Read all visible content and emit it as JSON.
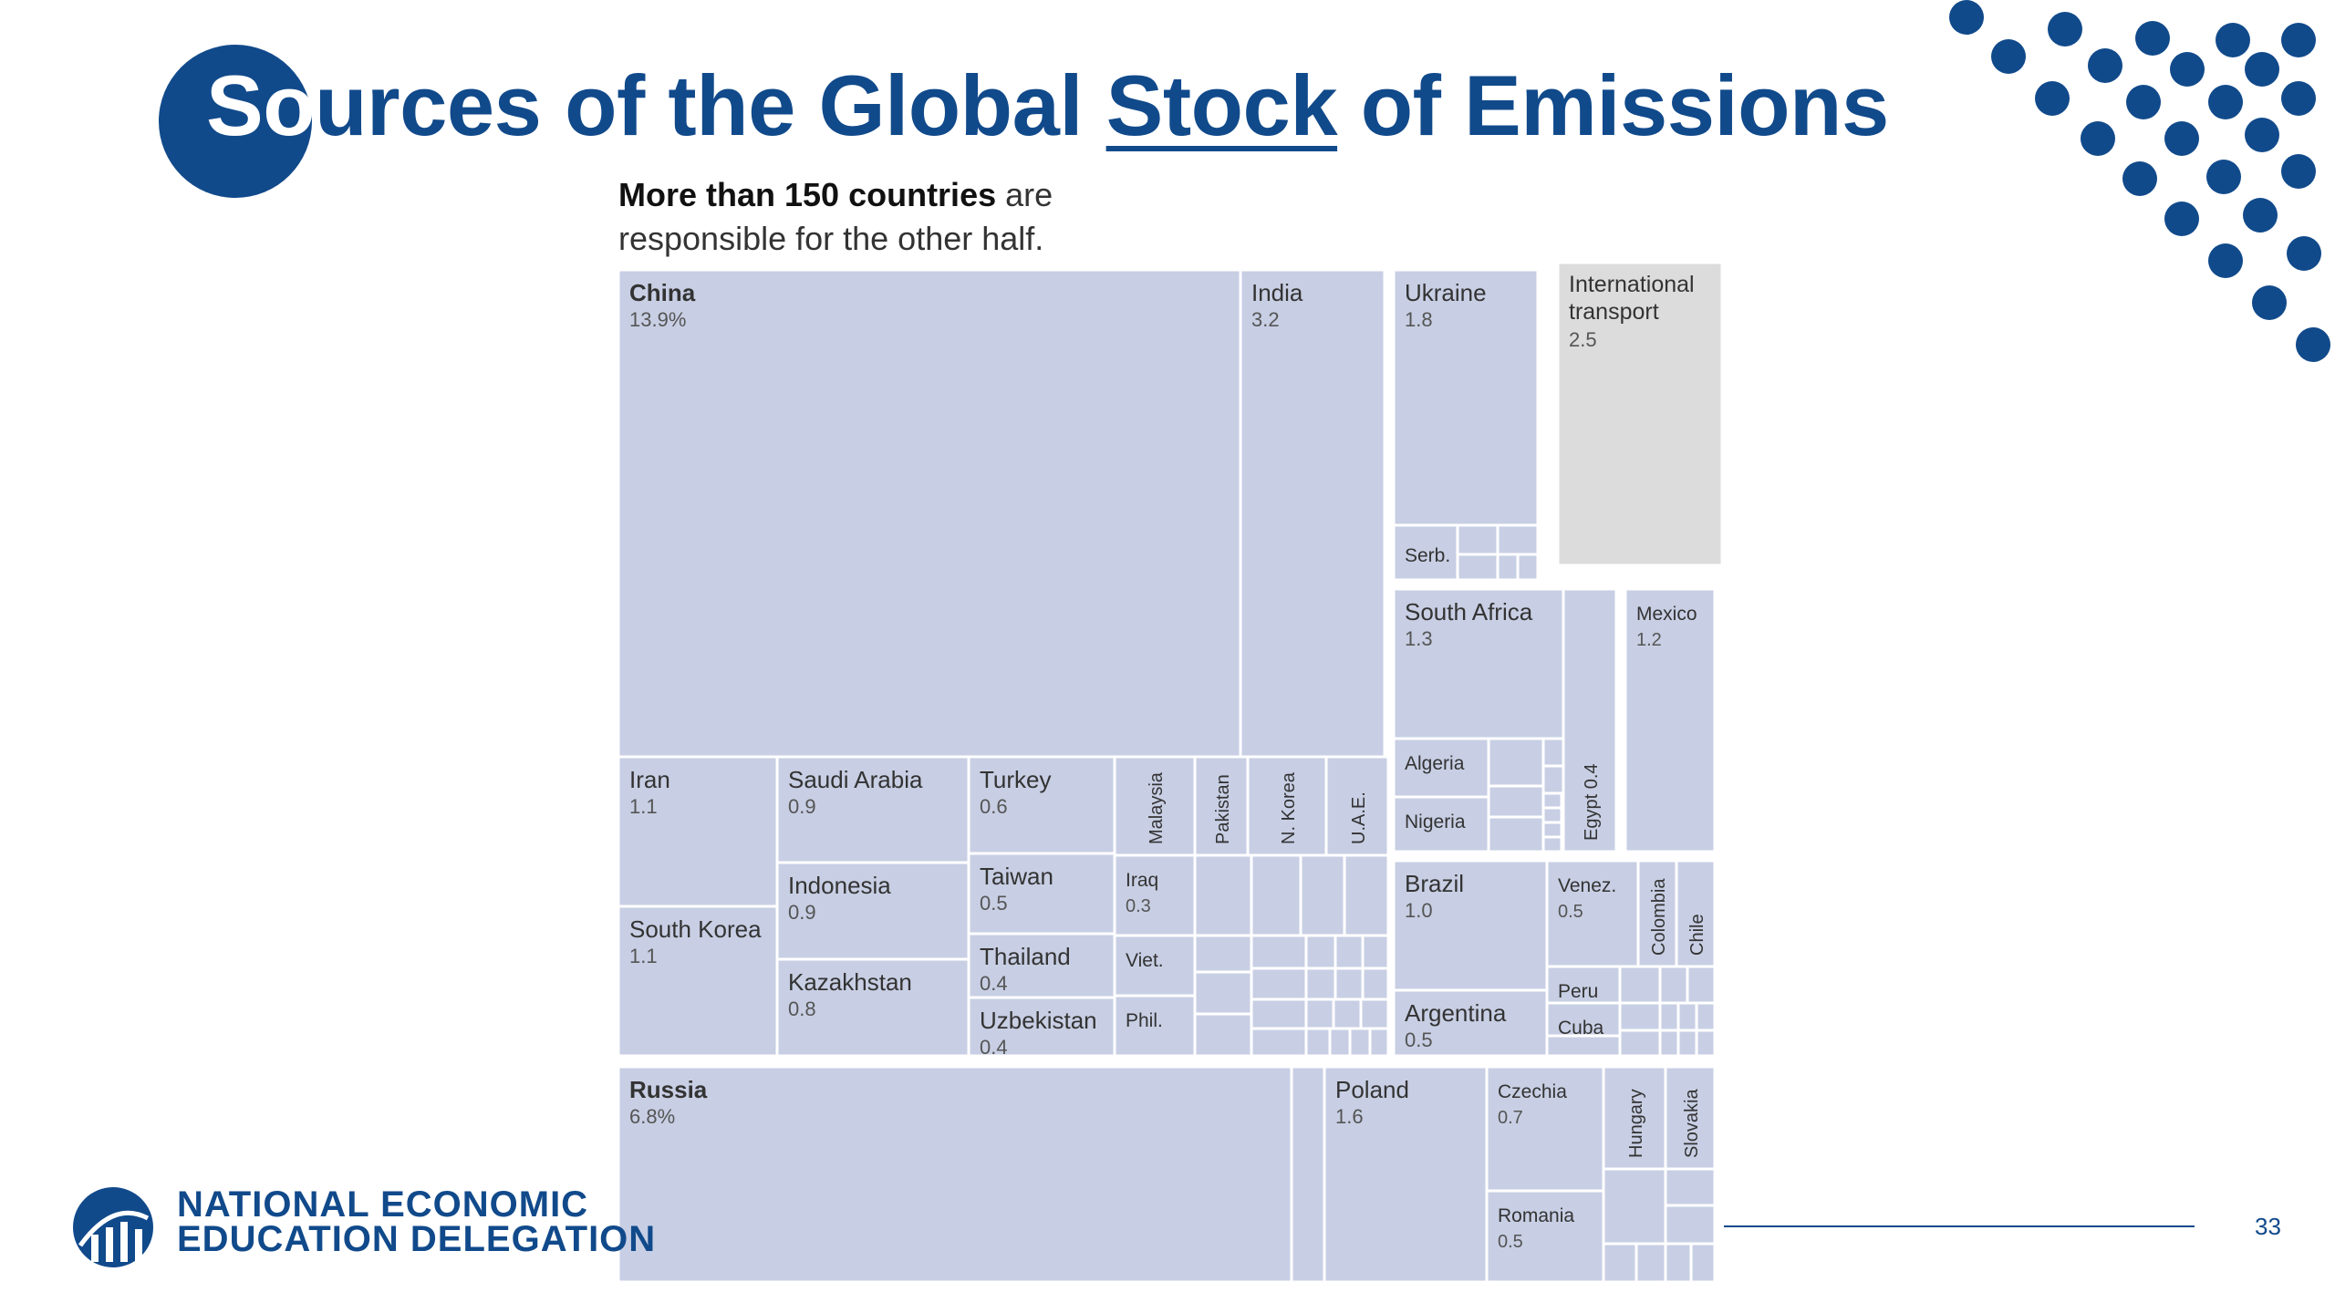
{
  "slide": {
    "title": {
      "first": "So",
      "rest_a": "urces of the Global ",
      "stock": "Stock",
      "rest_b": " of Emissions"
    },
    "subtitle": {
      "bold": "More than 150 countries",
      "line1_rest": " are",
      "line2": "responsible for the other half."
    },
    "org": {
      "line1": "NATIONAL ECONOMIC",
      "line2": "EDUCATION DELEGATION"
    },
    "page_number": "33",
    "colors": {
      "brand": "#114A8B",
      "cell": "#C8CFE4",
      "transport": "#DCDCDC",
      "border": "#FFFFFF"
    }
  },
  "chart_data": {
    "type": "treemap",
    "unit": "% of global emissions",
    "cells": [
      {
        "name": "China",
        "value": "13.9%",
        "bold": true
      },
      {
        "name": "India",
        "value": "3.2"
      },
      {
        "name": "Ukraine",
        "value": "1.8"
      },
      {
        "name": "Serb.",
        "value": ""
      },
      {
        "name": "International transport",
        "value": "2.5",
        "name_lines": [
          "International",
          "transport"
        ]
      },
      {
        "name": "Iran",
        "value": "1.1"
      },
      {
        "name": "Saudi Arabia",
        "value": "0.9"
      },
      {
        "name": "Turkey",
        "value": "0.6"
      },
      {
        "name": "Malaysia",
        "value": ""
      },
      {
        "name": "Pakistan",
        "value": ""
      },
      {
        "name": "N. Korea",
        "value": ""
      },
      {
        "name": "U.A.E.",
        "value": ""
      },
      {
        "name": "South Korea",
        "value": "1.1"
      },
      {
        "name": "Indonesia",
        "value": "0.9"
      },
      {
        "name": "Taiwan",
        "value": "0.5"
      },
      {
        "name": "Iraq",
        "value": "0.3"
      },
      {
        "name": "Thailand",
        "value": "0.4"
      },
      {
        "name": "Viet.",
        "value": ""
      },
      {
        "name": "Kazakhstan",
        "value": "0.8"
      },
      {
        "name": "Uzbekistan",
        "value": "0.4"
      },
      {
        "name": "Phil.",
        "value": ""
      },
      {
        "name": "South Africa",
        "value": "1.3"
      },
      {
        "name": "Egypt",
        "value": "0.4"
      },
      {
        "name": "Mexico",
        "value": "1.2"
      },
      {
        "name": "Algeria",
        "value": ""
      },
      {
        "name": "Nigeria",
        "value": ""
      },
      {
        "name": "Brazil",
        "value": "1.0"
      },
      {
        "name": "Venez.",
        "value": "0.5"
      },
      {
        "name": "Colombia",
        "value": ""
      },
      {
        "name": "Chile",
        "value": ""
      },
      {
        "name": "Argentina",
        "value": "0.5"
      },
      {
        "name": "Peru",
        "value": ""
      },
      {
        "name": "Cuba",
        "value": ""
      },
      {
        "name": "Russia",
        "value": "6.8%",
        "bold": true
      },
      {
        "name": "Poland",
        "value": "1.6"
      },
      {
        "name": "Czechia",
        "value": "0.7"
      },
      {
        "name": "Hungary",
        "value": ""
      },
      {
        "name": "Slovakia",
        "value": ""
      },
      {
        "name": "Romania",
        "value": "0.5"
      }
    ]
  }
}
